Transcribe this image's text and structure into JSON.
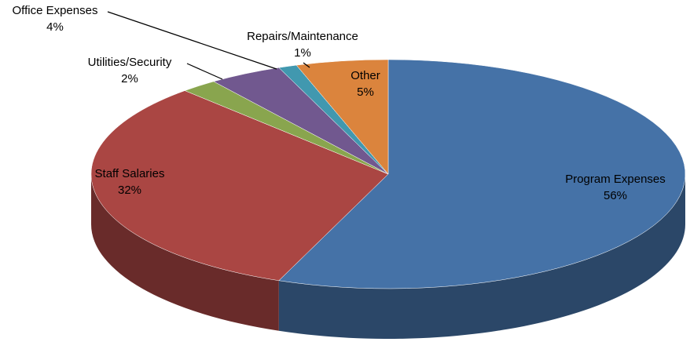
{
  "chart_data": {
    "type": "pie",
    "categories": [
      "Program Expenses",
      "Staff Salaries",
      "Utilities/Security",
      "Office Expenses",
      "Repairs/Maintenance",
      "Other"
    ],
    "values": [
      56,
      32,
      2,
      4,
      1,
      5
    ],
    "value_labels": [
      "56%",
      "32%",
      "2%",
      "4%",
      "1%",
      "5%"
    ],
    "colors": [
      "#4572a7",
      "#aa4643",
      "#89a54e",
      "#71588f",
      "#4198af",
      "#db843d"
    ]
  }
}
